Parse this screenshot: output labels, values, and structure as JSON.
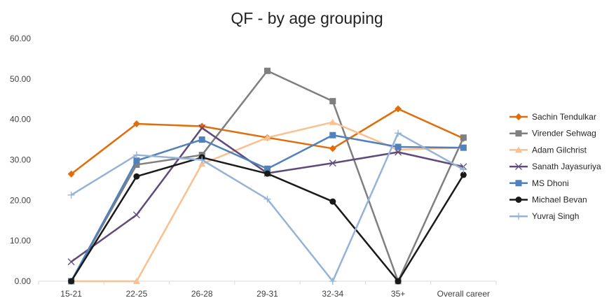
{
  "chart_data": {
    "type": "line",
    "title": "QF - by age grouping",
    "xlabel": "",
    "ylabel": "",
    "categories": [
      "15-21",
      "22-25",
      "26-28",
      "29-31",
      "32-34",
      "35+",
      "Overall career"
    ],
    "ylim": [
      0,
      60
    ],
    "yticks": [
      "0.00",
      "10.00",
      "20.00",
      "30.00",
      "40.00",
      "50.00",
      "60.00"
    ],
    "grid": false,
    "legend_position": "right",
    "series": [
      {
        "name": "Sachin Tendulkar",
        "color": "#e36c0a",
        "marker": "diamond",
        "values": [
          26.5,
          38.9,
          38.3,
          35.5,
          32.8,
          42.6,
          35.3
        ]
      },
      {
        "name": "Virender Sehwag",
        "color": "#7f7f7f",
        "marker": "square",
        "values": [
          0,
          28.8,
          31.2,
          52.0,
          44.5,
          0,
          35.5
        ]
      },
      {
        "name": "Adam Gilchrist",
        "color": "#fac090",
        "marker": "triangle",
        "values": [
          0,
          0,
          29.0,
          35.5,
          39.3,
          32.5,
          33.0
        ]
      },
      {
        "name": "Sanath Jayasuriya",
        "color": "#604a7b",
        "marker": "x",
        "values": [
          4.8,
          16.4,
          37.9,
          26.7,
          29.2,
          31.9,
          28.3
        ]
      },
      {
        "name": "MS Dhoni",
        "color": "#4f81bd",
        "marker": "square",
        "values": [
          0,
          29.8,
          35.0,
          27.8,
          36.1,
          33.2,
          33.0
        ]
      },
      {
        "name": "Michael Bevan",
        "color": "#1a1a1a",
        "marker": "circle",
        "values": [
          0,
          25.9,
          30.6,
          26.6,
          19.7,
          0,
          26.3
        ]
      },
      {
        "name": "Yuvraj Singh",
        "color": "#95b3d7",
        "marker": "plus",
        "values": [
          21.3,
          31.2,
          30.0,
          20.3,
          0,
          36.6,
          27.6
        ]
      }
    ]
  }
}
